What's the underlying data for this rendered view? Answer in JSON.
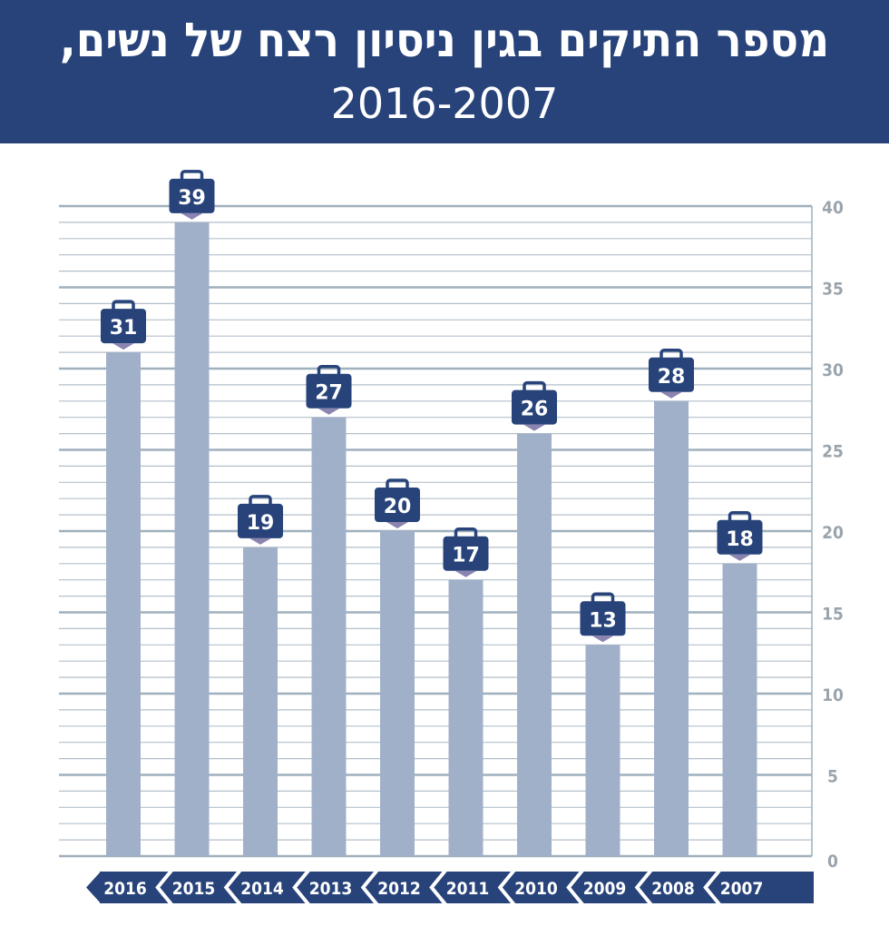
{
  "header": {
    "title": "מספר התיקים בגין ניסיון רצח של נשים,",
    "subtitle": "2016-2007"
  },
  "colors": {
    "header": "#27437a",
    "bar": "#a1b0c9",
    "badge": "#27437a",
    "grid": "#9fb0be",
    "axis_text": "#9aa4ad"
  },
  "chart_data": {
    "type": "bar",
    "categories": [
      "2016",
      "2015",
      "2014",
      "2013",
      "2012",
      "2011",
      "2010",
      "2009",
      "2008",
      "2007"
    ],
    "values": [
      31,
      39,
      19,
      27,
      20,
      17,
      26,
      13,
      28,
      18
    ],
    "ylim": [
      0,
      40
    ],
    "yticks": [
      0,
      5,
      10,
      15,
      20,
      25,
      30,
      35,
      40
    ],
    "y_axis_side": "right",
    "grid": true,
    "data_label_icon": "briefcase-icon"
  }
}
